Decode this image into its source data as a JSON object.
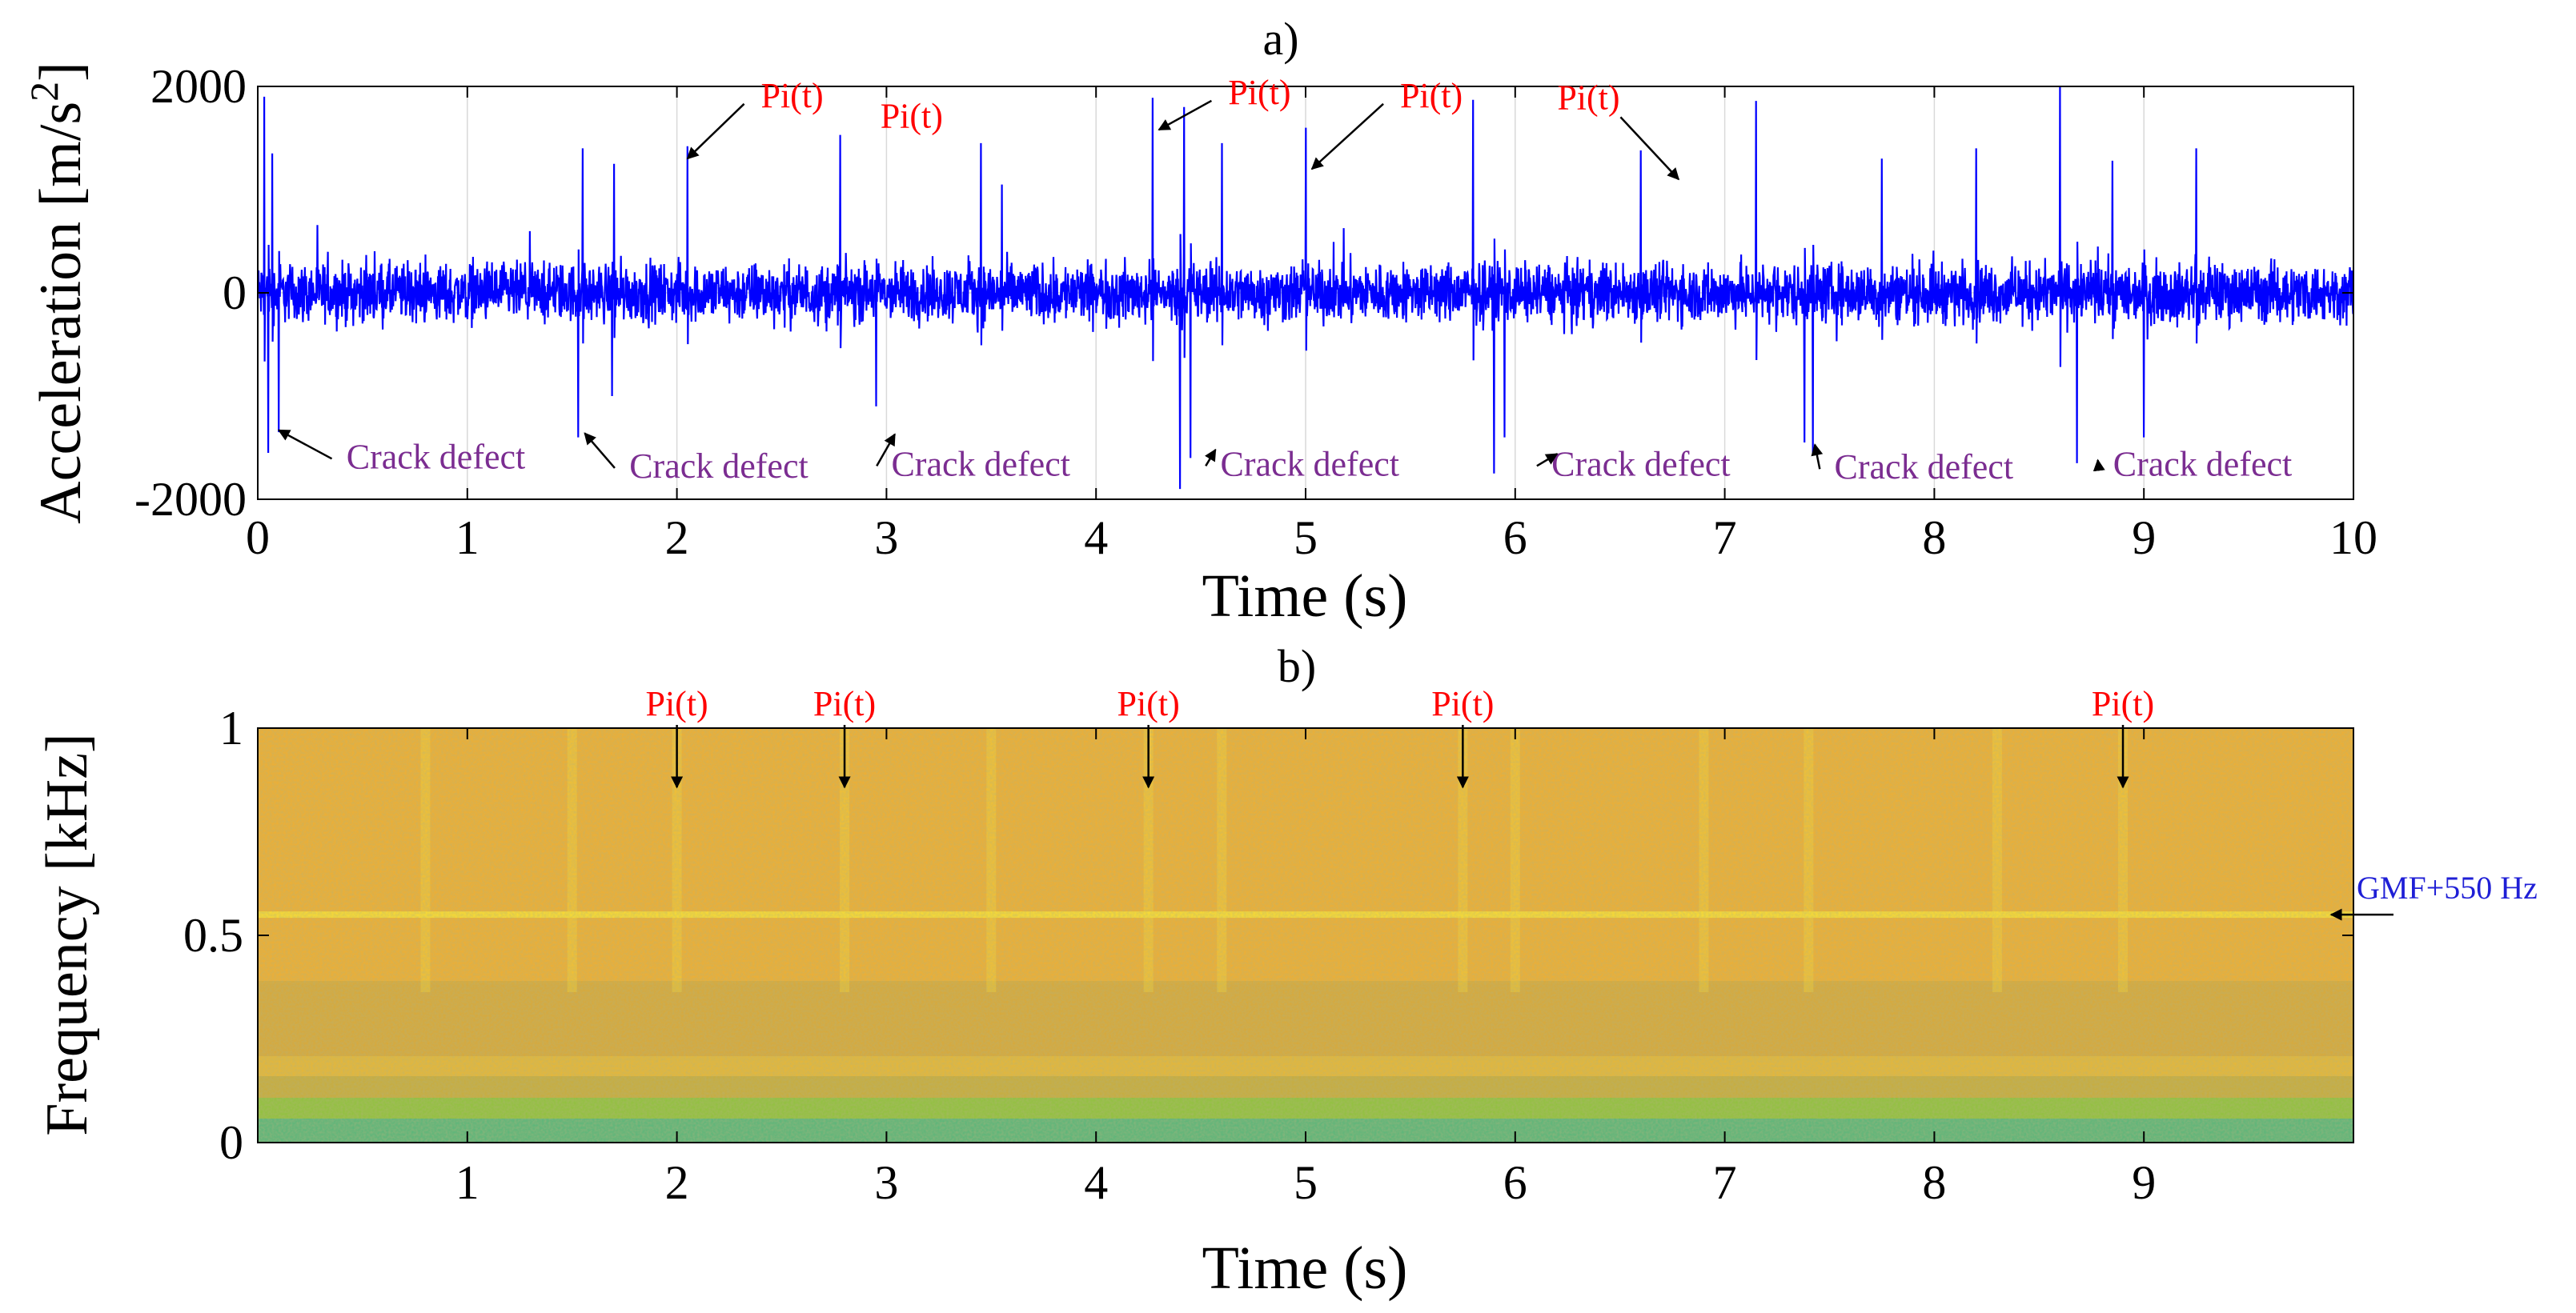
{
  "chart_data": [
    {
      "panel_label": "a)",
      "type": "line",
      "xlabel": "Time (s)",
      "ylabel": "Acceleration [m/s",
      "ylabel_sup": "2",
      "ylabel_end": "]",
      "xlim": [
        0,
        10
      ],
      "ylim": [
        -2000,
        2000
      ],
      "xticks": [
        0,
        1,
        2,
        3,
        4,
        5,
        6,
        7,
        8,
        9,
        10
      ],
      "yticks": [
        -2000,
        0,
        2000
      ],
      "grid": true,
      "series_color": "#0000ff",
      "noise_amplitude": 420,
      "positive_peaks": [
        {
          "t": 0.03,
          "v": 1900
        },
        {
          "t": 0.07,
          "v": 1350
        },
        {
          "t": 1.55,
          "v": 1400
        },
        {
          "t": 1.7,
          "v": 1250
        },
        {
          "t": 2.05,
          "v": 1420
        },
        {
          "t": 2.78,
          "v": 1530
        },
        {
          "t": 3.45,
          "v": 1450
        },
        {
          "t": 3.55,
          "v": 1050
        },
        {
          "t": 4.27,
          "v": 1890
        },
        {
          "t": 4.42,
          "v": 1800
        },
        {
          "t": 4.6,
          "v": 1450
        },
        {
          "t": 5.0,
          "v": 1600
        },
        {
          "t": 5.8,
          "v": 1870
        },
        {
          "t": 6.6,
          "v": 1380
        },
        {
          "t": 7.15,
          "v": 1860
        },
        {
          "t": 7.75,
          "v": 1300
        },
        {
          "t": 8.2,
          "v": 1400
        },
        {
          "t": 8.6,
          "v": 2050
        },
        {
          "t": 8.85,
          "v": 1280
        },
        {
          "t": 9.25,
          "v": 1400
        }
      ],
      "negative_peaks": [
        {
          "t": 0.05,
          "v": -1550
        },
        {
          "t": 0.1,
          "v": -1350
        },
        {
          "t": 1.53,
          "v": -1400
        },
        {
          "t": 1.69,
          "v": -1000
        },
        {
          "t": 2.95,
          "v": -1100
        },
        {
          "t": 4.4,
          "v": -1900
        },
        {
          "t": 4.45,
          "v": -1600
        },
        {
          "t": 5.9,
          "v": -1750
        },
        {
          "t": 5.95,
          "v": -1400
        },
        {
          "t": 7.38,
          "v": -1450
        },
        {
          "t": 7.42,
          "v": -1550
        },
        {
          "t": 8.68,
          "v": -1650
        },
        {
          "t": 9.0,
          "v": -1400
        }
      ],
      "pi_annotations": [
        {
          "label": "Pi(t)",
          "text_t": 2.55,
          "text_v": 1800,
          "arrow_t": 2.05,
          "arrow_v": 1300
        },
        {
          "label": "Pi(t)",
          "text_t": 3.12,
          "text_v": 1600,
          "arrow_t": null,
          "arrow_v": null
        },
        {
          "label": "Pi(t)",
          "text_t": 4.78,
          "text_v": 1830,
          "arrow_t": 4.3,
          "arrow_v": 1580
        },
        {
          "label": "Pi(t)",
          "text_t": 5.6,
          "text_v": 1800,
          "arrow_t": 5.03,
          "arrow_v": 1200
        },
        {
          "label": "Pi(t)",
          "text_t": 6.35,
          "text_v": 1780,
          "arrow_t": 6.78,
          "arrow_v": 1100
        }
      ],
      "crack_annotations": [
        {
          "label": "Crack defect",
          "text_t": 0.85,
          "text_v": -1700,
          "arrow_t": 0.1,
          "arrow_v": -1330
        },
        {
          "label": "Crack defect",
          "text_t": 2.2,
          "text_v": -1790,
          "arrow_t": 1.56,
          "arrow_v": -1360
        },
        {
          "label": "Crack defect",
          "text_t": 3.45,
          "text_v": -1770,
          "arrow_t": 3.04,
          "arrow_v": -1370
        },
        {
          "label": "Crack defect",
          "text_t": 5.02,
          "text_v": -1770,
          "arrow_t": 4.57,
          "arrow_v": -1520
        },
        {
          "label": "Crack defect",
          "text_t": 6.6,
          "text_v": -1770,
          "arrow_t": 6.2,
          "arrow_v": -1560
        },
        {
          "label": "Crack defect",
          "text_t": 7.95,
          "text_v": -1800,
          "arrow_t": 7.43,
          "arrow_v": -1470
        },
        {
          "label": "Crack defect",
          "text_t": 9.28,
          "text_v": -1770,
          "arrow_t": 8.78,
          "arrow_v": -1620
        }
      ],
      "pi_color": "#ff0000",
      "crack_color": "#7b2d91"
    },
    {
      "panel_label": "b)",
      "type": "heatmap",
      "xlabel": "Time (s)",
      "ylabel": "Frequency [kHz]",
      "xlim": [
        0,
        10
      ],
      "ylim": [
        0,
        1
      ],
      "xticks": [
        1,
        2,
        3,
        4,
        5,
        6,
        7,
        8,
        9
      ],
      "yticks": [
        0,
        0.5,
        1
      ],
      "colormap_colors": [
        "#2ab5a0",
        "#8fc23a",
        "#f0a830",
        "#ffe12e"
      ],
      "bright_band_frequency_khz": 0.55,
      "pi_annotations": [
        {
          "label": "Pi(t)",
          "t": 2.0
        },
        {
          "label": "Pi(t)",
          "t": 2.8
        },
        {
          "label": "Pi(t)",
          "t": 4.25
        },
        {
          "label": "Pi(t)",
          "t": 5.75
        },
        {
          "label": "Pi(t)",
          "t": 8.9
        }
      ],
      "band_annotation": {
        "label": "GMF+550 Hz",
        "freq_khz": 0.55
      },
      "pi_color": "#ff0000",
      "band_label_color": "#1f1fd6"
    }
  ]
}
